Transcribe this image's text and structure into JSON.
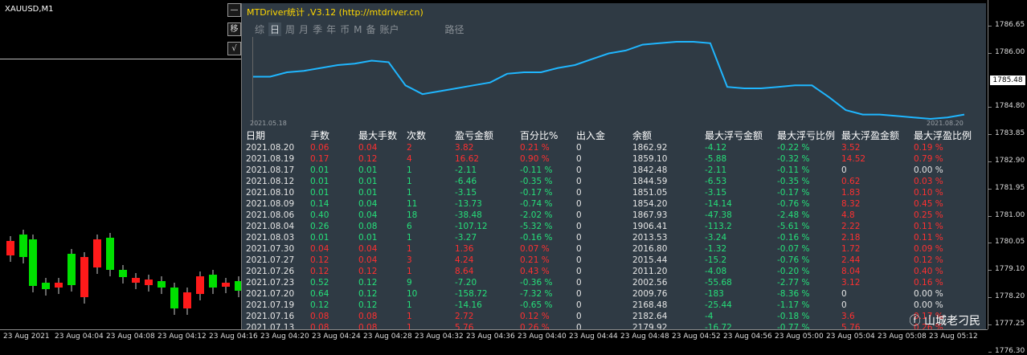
{
  "symbol": "XAUUSD,M1",
  "side_buttons": [
    "移",
    "√"
  ],
  "panel": {
    "title": "MTDriver统计 ,V3.12 (http://mtdriver.cn)",
    "tabs": [
      "综",
      "日",
      "周",
      "月",
      "季",
      "年",
      "币",
      "M",
      "备",
      "账户"
    ],
    "active_tab": "日",
    "path_label": "路径",
    "chart_date_start": "2021.05.18",
    "chart_date_end": "2021.08.20",
    "line_color": "#1fb6ff",
    "balance_curve": [
      1846,
      1846,
      1849,
      1850,
      1852,
      1854,
      1855,
      1857,
      1856,
      1840,
      1834,
      1836,
      1838,
      1840,
      1842,
      1848,
      1849,
      1849,
      1852,
      1854,
      1858,
      1862,
      1864,
      1868,
      1869,
      1870,
      1870,
      1869,
      1839,
      1838,
      1838,
      1839,
      1840,
      1840,
      1832,
      1823,
      1820,
      1820,
      1819,
      1818,
      1817,
      1818,
      1820
    ]
  },
  "table": {
    "headers": [
      "日期",
      "手数",
      "最大手数",
      "次数",
      "盈亏金额",
      "百分比%",
      "出入金",
      "余额",
      "最大浮亏金额",
      "最大浮亏比例",
      "最大浮盈金额",
      "最大浮盈比例"
    ],
    "rows": [
      {
        "s": "pos",
        "c": [
          "2021.08.20",
          "0.06",
          "0.04",
          "2",
          "3.82",
          "0.21 %",
          "0",
          "1862.92",
          "-4.12",
          "-0.22 %",
          "3.52",
          "0.19 %"
        ]
      },
      {
        "s": "pos",
        "c": [
          "2021.08.19",
          "0.17",
          "0.12",
          "4",
          "16.62",
          "0.90 %",
          "0",
          "1859.10",
          "-5.88",
          "-0.32 %",
          "14.52",
          "0.79 %"
        ]
      },
      {
        "s": "neg",
        "c": [
          "2021.08.17",
          "0.01",
          "0.01",
          "1",
          "-2.11",
          "-0.11 %",
          "0",
          "1842.48",
          "-2.11",
          "-0.11 %",
          "0",
          "0.00 %"
        ]
      },
      {
        "s": "neg",
        "c": [
          "2021.08.12",
          "0.01",
          "0.01",
          "1",
          "-6.46",
          "-0.35 %",
          "0",
          "1844.59",
          "-6.53",
          "-0.35 %",
          "0.62",
          "0.03 %"
        ]
      },
      {
        "s": "neg",
        "c": [
          "2021.08.10",
          "0.01",
          "0.01",
          "1",
          "-3.15",
          "-0.17 %",
          "0",
          "1851.05",
          "-3.15",
          "-0.17 %",
          "1.83",
          "0.10 %"
        ]
      },
      {
        "s": "neg",
        "c": [
          "2021.08.09",
          "0.14",
          "0.04",
          "11",
          "-13.73",
          "-0.74 %",
          "0",
          "1854.20",
          "-14.14",
          "-0.76 %",
          "8.32",
          "0.45 %"
        ]
      },
      {
        "s": "neg",
        "c": [
          "2021.08.06",
          "0.40",
          "0.04",
          "18",
          "-38.48",
          "-2.02 %",
          "0",
          "1867.93",
          "-47.38",
          "-2.48 %",
          "4.8",
          "0.25 %"
        ]
      },
      {
        "s": "neg",
        "c": [
          "2021.08.04",
          "0.26",
          "0.08",
          "6",
          "-107.12",
          "-5.32 %",
          "0",
          "1906.41",
          "-113.2",
          "-5.61 %",
          "2.22",
          "0.11 %"
        ]
      },
      {
        "s": "neg",
        "c": [
          "2021.08.03",
          "0.01",
          "0.01",
          "1",
          "-3.27",
          "-0.16 %",
          "0",
          "2013.53",
          "-3.24",
          "-0.16 %",
          "2.18",
          "0.11 %"
        ]
      },
      {
        "s": "pos",
        "c": [
          "2021.07.30",
          "0.04",
          "0.04",
          "1",
          "1.36",
          "0.07 %",
          "0",
          "2016.80",
          "-1.32",
          "-0.07 %",
          "1.72",
          "0.09 %"
        ]
      },
      {
        "s": "pos",
        "c": [
          "2021.07.27",
          "0.12",
          "0.04",
          "3",
          "4.24",
          "0.21 %",
          "0",
          "2015.44",
          "-15.2",
          "-0.76 %",
          "2.44",
          "0.12 %"
        ]
      },
      {
        "s": "pos",
        "c": [
          "2021.07.26",
          "0.12",
          "0.12",
          "1",
          "8.64",
          "0.43 %",
          "0",
          "2011.20",
          "-4.08",
          "-0.20 %",
          "8.04",
          "0.40 %"
        ]
      },
      {
        "s": "neg",
        "c": [
          "2021.07.23",
          "0.52",
          "0.12",
          "9",
          "-7.20",
          "-0.36 %",
          "0",
          "2002.56",
          "-55.68",
          "-2.77 %",
          "3.12",
          "0.16 %"
        ]
      },
      {
        "s": "neg",
        "c": [
          "2021.07.20",
          "0.64",
          "0.12",
          "10",
          "-158.72",
          "-7.32 %",
          "0",
          "2009.76",
          "-183",
          "-8.36 %",
          "0",
          "0.00 %"
        ]
      },
      {
        "s": "neg",
        "c": [
          "2021.07.19",
          "0.12",
          "0.12",
          "1",
          "-14.16",
          "-0.65 %",
          "0",
          "2168.48",
          "-25.44",
          "-1.17 %",
          "0",
          "0.00 %"
        ]
      },
      {
        "s": "pos",
        "c": [
          "2021.07.16",
          "0.08",
          "0.08",
          "1",
          "2.72",
          "0.12 %",
          "0",
          "2182.64",
          "-4",
          "-0.18 %",
          "3.6",
          "0.17 %"
        ]
      },
      {
        "s": "pos",
        "c": [
          "2021.07.13",
          "0.08",
          "0.08",
          "1",
          "5.76",
          "0.26 %",
          "0",
          "2179.92",
          "-16.72",
          "-0.77 %",
          "5.76",
          "0.26 %"
        ]
      }
    ]
  },
  "y_axis": [
    "1786.65",
    "1786.00",
    "1785.48",
    "1784.80",
    "1783.85",
    "1782.90",
    "1781.95",
    "1781.00",
    "1780.05",
    "1779.10",
    "1778.20",
    "1777.25",
    "1776.30"
  ],
  "current_price": "1785.48",
  "x_axis": [
    "23 Aug 2021",
    "23 Aug 04:04",
    "23 Aug 04:08",
    "23 Aug 04:12",
    "23 Aug 04:16",
    "23 Aug 04:20",
    "23 Aug 04:24",
    "23 Aug 04:28",
    "23 Aug 04:32",
    "23 Aug 04:36",
    "23 Aug 04:40",
    "23 Aug 04:44",
    "23 Aug 04:48",
    "23 Aug 04:52",
    "23 Aug 04:56",
    "23 Aug 05:00",
    "23 Aug 05:04",
    "23 Aug 05:08",
    "23 Aug 05:12"
  ],
  "watermark": "山城老刁民",
  "colors": {
    "bull": "#00e000",
    "bear": "#ff1a1a",
    "panel_bg": "#2f3a44",
    "title": "#ffd800"
  }
}
